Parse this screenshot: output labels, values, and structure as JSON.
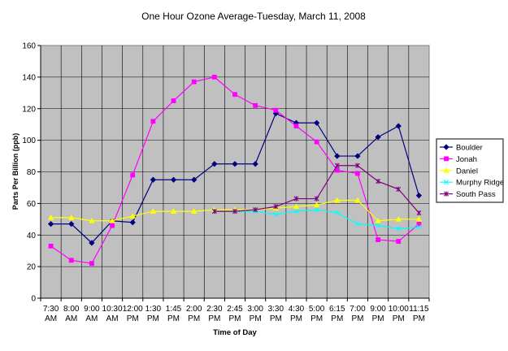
{
  "chart_data": {
    "type": "line",
    "title": "One Hour Ozone Average-Tuesday, March 11, 2008",
    "xlabel": "Time of Day",
    "ylabel": "Parts Per Billion (ppb)",
    "ylim": [
      0,
      160
    ],
    "y_ticks": [
      "0",
      "20",
      "40",
      "60",
      "80",
      "100",
      "120",
      "140",
      "160"
    ],
    "grid": true,
    "legend_position": "right",
    "plot_background": "#c0c0c0",
    "categories": [
      [
        "7:30",
        "AM"
      ],
      [
        "8:00",
        "AM"
      ],
      [
        "9:00",
        "AM"
      ],
      [
        "10:30",
        "AM"
      ],
      [
        "12:00",
        "PM"
      ],
      [
        "1:30",
        "PM"
      ],
      [
        "1:45",
        "PM"
      ],
      [
        "2:00",
        "PM"
      ],
      [
        "2:30",
        "PM"
      ],
      [
        "2:45",
        "PM"
      ],
      [
        "3:00",
        "PM"
      ],
      [
        "3:30",
        "PM"
      ],
      [
        "4:30",
        "PM"
      ],
      [
        "5:00",
        "PM"
      ],
      [
        "6:15",
        "PM"
      ],
      [
        "7:00",
        "PM"
      ],
      [
        "9:00",
        "PM"
      ],
      [
        "10:00",
        "PM"
      ],
      [
        "11:15",
        "PM"
      ]
    ],
    "series": [
      {
        "name": "Boulder",
        "color": "#000080",
        "marker": "diamond",
        "values": [
          47,
          47,
          35,
          49,
          48,
          75,
          75,
          75,
          85,
          85,
          85,
          117,
          111,
          111,
          90,
          90,
          102,
          109,
          65
        ]
      },
      {
        "name": "Jonah",
        "color": "#ff00ff",
        "marker": "square",
        "values": [
          33,
          24,
          22,
          46,
          78,
          112,
          125,
          137,
          140,
          129,
          122,
          119,
          109,
          99,
          81,
          79,
          37,
          36,
          47
        ]
      },
      {
        "name": "Daniel",
        "color": "#ffff00",
        "marker": "triangle",
        "values": [
          51,
          51,
          49,
          49,
          52,
          55,
          55,
          55,
          56,
          56,
          56,
          57,
          58,
          59,
          62,
          62,
          49,
          50,
          50
        ]
      },
      {
        "name": "Murphy Ridge",
        "color": "#00ffff",
        "marker": "x",
        "values": [
          null,
          null,
          null,
          null,
          null,
          null,
          null,
          null,
          55,
          55,
          55,
          53,
          55,
          56,
          54,
          47,
          46,
          44,
          45
        ]
      },
      {
        "name": "South Pass",
        "color": "#800080",
        "marker": "star",
        "values": [
          null,
          null,
          null,
          null,
          null,
          null,
          null,
          null,
          55,
          55,
          56,
          58,
          63,
          63,
          84,
          84,
          74,
          69,
          54
        ]
      }
    ]
  }
}
